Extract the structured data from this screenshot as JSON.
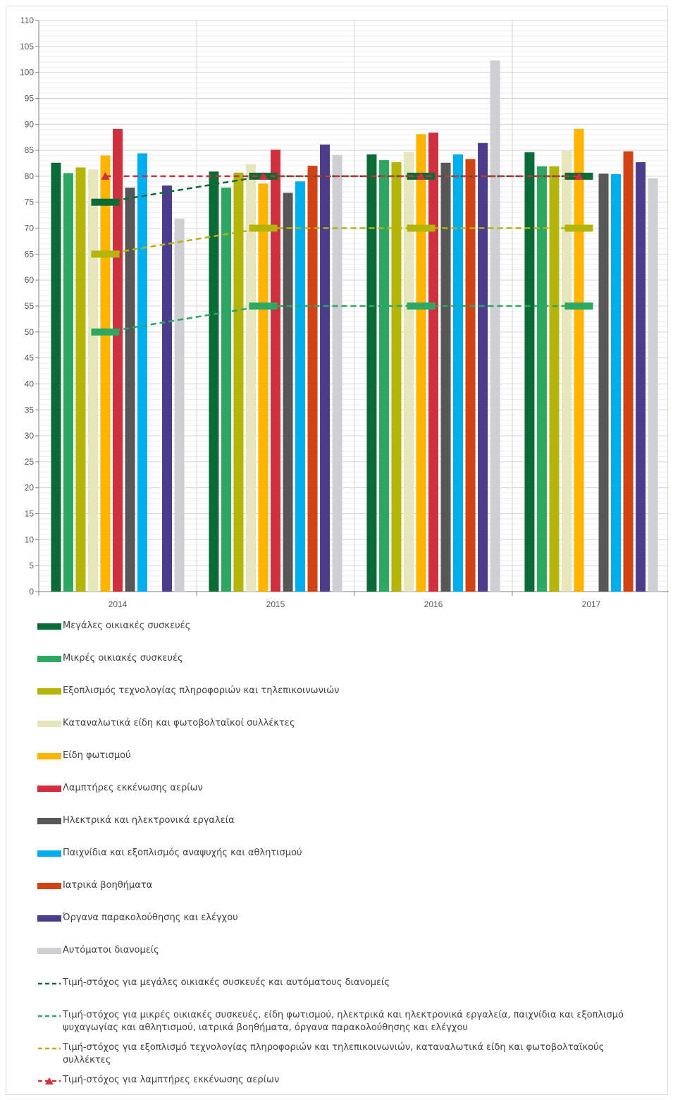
{
  "chart_data": {
    "type": "bar",
    "categories": [
      "2014",
      "2015",
      "2016",
      "2017"
    ],
    "ylim": [
      0,
      110
    ],
    "yticks": [
      "0",
      "5",
      "10",
      "15",
      "20",
      "25",
      "30",
      "35",
      "40",
      "45",
      "50",
      "55",
      "60",
      "65",
      "70",
      "75",
      "80",
      "85",
      "90",
      "95",
      "100",
      "105",
      "110"
    ],
    "grid": true,
    "legend_position": "bottom",
    "series": [
      {
        "name": "Μεγάλες οικιακές συσκευές",
        "color": "#0b6b36",
        "values": [
          82.6,
          80.9,
          84.2,
          84.6
        ]
      },
      {
        "name": "Μικρές οικιακές συσκευές",
        "color": "#2ca862",
        "values": [
          80.6,
          77.8,
          83.1,
          81.9
        ]
      },
      {
        "name": "Εξοπλισμός τεχνολογίας πληροφοριών και τηλεπικοινωνιών",
        "color": "#b4b40b",
        "values": [
          81.7,
          80.7,
          82.7,
          81.9
        ]
      },
      {
        "name": "Καταναλωτικά είδη και φωτοβολταϊκοί συλλέκτες",
        "color": "#e6e6bd",
        "values": [
          81.3,
          82.3,
          84.7,
          84.9
        ]
      },
      {
        "name": "Είδη φωτισμού",
        "color": "#ffb400",
        "values": [
          84.0,
          78.6,
          88.1,
          89.1
        ]
      },
      {
        "name": "Λαμπτήρες εκκένωσης αερίων",
        "color": "#d02f3d",
        "values": [
          89.1,
          85.1,
          88.4,
          null
        ]
      },
      {
        "name": "Ηλεκτρικά και ηλεκτρονικά εργαλεία",
        "color": "#575757",
        "values": [
          77.8,
          76.8,
          82.6,
          80.5
        ]
      },
      {
        "name": "Παιχνίδια και εξοπλισμός αναψυχής και αθλητισμού",
        "color": "#00aeef",
        "values": [
          84.4,
          79.0,
          84.2,
          80.4
        ]
      },
      {
        "name": "Ιατρικά βοηθήματα",
        "color": "#d14312",
        "values": [
          null,
          82.0,
          83.3,
          84.8
        ]
      },
      {
        "name": "Όργανα παρακολούθησης και ελέγχου",
        "color": "#4b3d8c",
        "values": [
          78.2,
          86.1,
          86.4,
          82.7
        ]
      },
      {
        "name": "Αυτόματοι διανομείς",
        "color": "#cfced2",
        "values": [
          71.8,
          84.1,
          102.3,
          79.6
        ]
      }
    ],
    "targets": [
      {
        "name": "Τιμή-στόχος για μεγάλες οικιακές συσκευές και αυτόματους διανομείς",
        "color": "#0b6b36",
        "values": [
          75,
          80,
          80,
          80
        ],
        "marker": "bar"
      },
      {
        "name": "Τιμή-στόχος για μικρές οικιακές συσκευές, είδη φωτισμού, ηλεκτρικά και ηλεκτρονικά εργαλεία, παιχνίδια και εξοπλισμό ψυχαγωγίας και αθλητισμού, ιατρικά βοηθήματα, όργανα παρακολούθησης και ελέγχου",
        "color": "#2ca862",
        "values": [
          50,
          55,
          55,
          55
        ],
        "marker": "bar"
      },
      {
        "name": "Τιμή-στόχος για εξοπλισμό τεχνολογίας πληροφοριών και τηλεπικοινωνιών, καταναλωτικά είδη και φωτοβολταϊκούς συλλέκτες",
        "color": "#b4b40b",
        "values": [
          65,
          70,
          70,
          70
        ],
        "marker": "bar"
      },
      {
        "name": "Τιμή-στόχος για λαμπτήρες εκκένωσης αερίων",
        "color": "#d02f3d",
        "values": [
          80,
          80,
          80,
          80
        ],
        "marker": "triangle"
      }
    ]
  }
}
